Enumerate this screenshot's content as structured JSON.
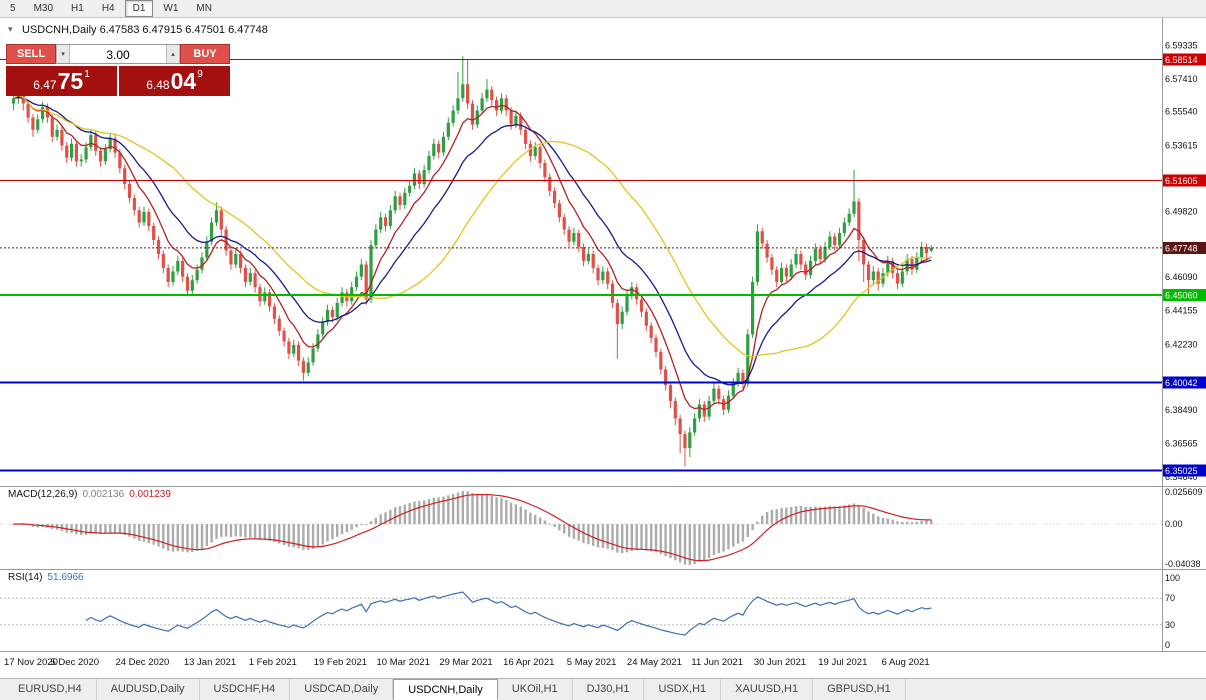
{
  "toolbar": {
    "periods": [
      {
        "label": "5",
        "active": false
      },
      {
        "label": "M30",
        "active": false
      },
      {
        "label": "H1",
        "active": false
      },
      {
        "label": "H4",
        "active": false
      },
      {
        "label": "D1",
        "active": true
      },
      {
        "label": "W1",
        "active": false
      },
      {
        "label": "MN",
        "active": false
      }
    ]
  },
  "chart_header": {
    "title_line": "USDCNH,Daily 6.47583 6.47915 6.47501 6.47748"
  },
  "trade_panel": {
    "sell_label": "SELL",
    "buy_label": "BUY",
    "volume": "3.00",
    "sell_price_small": "6.47",
    "sell_price_big": "75",
    "sell_price_sup": "1",
    "buy_price_small": "6.48",
    "buy_price_big": "04",
    "buy_price_sup": "9",
    "button_color": "#e0504a",
    "panel_color": "#a31010"
  },
  "indicators": {
    "macd": {
      "label": "MACD(12,26,9)",
      "value_main": "0.002136",
      "value_signal": "0.001239",
      "axis_top": "0.025609",
      "axis_zero": "0.00",
      "axis_bottom": "-0.04038",
      "histogram_color": "#ababab",
      "signal_color": "#cc2222"
    },
    "rsi": {
      "label": "RSI(14)",
      "value": "51.6966",
      "axis": [
        "100",
        "70",
        "30",
        "0"
      ],
      "levels": [
        70,
        30
      ],
      "line_color": "#3c6fb4"
    }
  },
  "tabs": [
    {
      "label": "EURUSD,H4",
      "active": false
    },
    {
      "label": "AUDUSD,Daily",
      "active": false
    },
    {
      "label": "USDCHF,H4",
      "active": false
    },
    {
      "label": "USDCAD,Daily",
      "active": false
    },
    {
      "label": "USDCNH,Daily",
      "active": true
    },
    {
      "label": "UKOil,H1",
      "active": false
    },
    {
      "label": "DJ30,H1",
      "active": false
    },
    {
      "label": "USDX,H1",
      "active": false
    },
    {
      "label": "XAUUSD,H1",
      "active": false
    },
    {
      "label": "GBPUSD,H1",
      "active": false
    }
  ],
  "chart_data": {
    "type": "candlestick",
    "symbol": "USDCNH",
    "timeframe": "Daily",
    "title": "USDCNH,Daily",
    "last_ohlc": {
      "open": 6.47583,
      "high": 6.47915,
      "low": 6.47501,
      "close": 6.47748
    },
    "up_color": "#2f9e41",
    "down_color": "#e05048",
    "price_axis_ticks": [
      "6.59335",
      "6.57410",
      "6.55540",
      "6.53615",
      "6.49820",
      "6.46090",
      "6.44155",
      "6.42230",
      "6.38490",
      "6.36565",
      "6.34640"
    ],
    "hlines": [
      {
        "label": "6.58514",
        "price": 6.58514,
        "color": "#cc0000",
        "width": 1
      },
      {
        "label": "6.51605",
        "price": 6.51605,
        "color": "#cc0000",
        "width": 1
      },
      {
        "label": "6.45060",
        "price": 6.4506,
        "color": "#00bb00",
        "width": 2
      },
      {
        "label": "6.40042",
        "price": 6.40042,
        "color": "#0000cc",
        "width": 2
      },
      {
        "label": "6.35025",
        "price": 6.35025,
        "color": "#0000cc",
        "width": 2
      }
    ],
    "current_price": {
      "label": "6.47748",
      "price": 6.47748,
      "color": "#5b1414"
    },
    "ma_lines": [
      {
        "name": "fast",
        "period": 8,
        "type": "ema",
        "color": "#b22222"
      },
      {
        "name": "medium",
        "period": 18,
        "type": "ema",
        "color": "#1a1a8c"
      },
      {
        "name": "slow",
        "period": 34,
        "type": "sma",
        "color": "#e0c520"
      }
    ],
    "date_labels": [
      {
        "label": "17 Nov 2020",
        "i": 0
      },
      {
        "label": "5 Dec 2020",
        "i": 13
      },
      {
        "label": "24 Dec 2020",
        "i": 27
      },
      {
        "label": "13 Jan 2021",
        "i": 41
      },
      {
        "label": "1 Feb 2021",
        "i": 54
      },
      {
        "label": "19 Feb 2021",
        "i": 68
      },
      {
        "label": "10 Mar 2021",
        "i": 81
      },
      {
        "label": "29 Mar 2021",
        "i": 94
      },
      {
        "label": "16 Apr 2021",
        "i": 107
      },
      {
        "label": "5 May 2021",
        "i": 120
      },
      {
        "label": "24 May 2021",
        "i": 133
      },
      {
        "label": "11 Jun 2021",
        "i": 146
      },
      {
        "label": "30 Jun 2021",
        "i": 159
      },
      {
        "label": "19 Jul 2021",
        "i": 172
      },
      {
        "label": "6 Aug 2021",
        "i": 185
      }
    ],
    "candles": [
      [
        6.56,
        6.566,
        6.556,
        6.563
      ],
      [
        6.563,
        6.57,
        6.56,
        6.567
      ],
      [
        6.567,
        6.569,
        6.556,
        6.56
      ],
      [
        6.56,
        6.562,
        6.549,
        6.552
      ],
      [
        6.552,
        6.554,
        6.541,
        6.545
      ],
      [
        6.545,
        6.554,
        6.543,
        6.551
      ],
      [
        6.551,
        6.561,
        6.549,
        6.558
      ],
      [
        6.558,
        6.56,
        6.549,
        6.552
      ],
      [
        6.552,
        6.554,
        6.538,
        6.541
      ],
      [
        6.541,
        6.548,
        6.539,
        6.545
      ],
      [
        6.545,
        6.547,
        6.533,
        6.536
      ],
      [
        6.536,
        6.538,
        6.526,
        6.529
      ],
      [
        6.529,
        6.54,
        6.527,
        6.537
      ],
      [
        6.537,
        6.539,
        6.524,
        6.527
      ],
      [
        6.527,
        6.531,
        6.524,
        6.528
      ],
      [
        6.528,
        6.538,
        6.526,
        6.535
      ],
      [
        6.535,
        6.545,
        6.533,
        6.542
      ],
      [
        6.542,
        6.544,
        6.53,
        6.533
      ],
      [
        6.533,
        6.535,
        6.524,
        6.527
      ],
      [
        6.527,
        6.537,
        6.525,
        6.534
      ],
      [
        6.534,
        6.543,
        6.532,
        6.54
      ],
      [
        6.54,
        6.542,
        6.529,
        6.532
      ],
      [
        6.532,
        6.534,
        6.52,
        6.523
      ],
      [
        6.523,
        6.525,
        6.511,
        6.514
      ],
      [
        6.514,
        6.516,
        6.503,
        6.506
      ],
      [
        6.506,
        6.508,
        6.496,
        6.499
      ],
      [
        6.499,
        6.501,
        6.489,
        6.492
      ],
      [
        6.492,
        6.501,
        6.49,
        6.498
      ],
      [
        6.498,
        6.5,
        6.487,
        6.49
      ],
      [
        6.49,
        6.492,
        6.479,
        6.482
      ],
      [
        6.482,
        6.484,
        6.471,
        6.474
      ],
      [
        6.474,
        6.476,
        6.463,
        6.466
      ],
      [
        6.466,
        6.468,
        6.455,
        6.458
      ],
      [
        6.458,
        6.467,
        6.456,
        6.464
      ],
      [
        6.464,
        6.473,
        6.462,
        6.47
      ],
      [
        6.47,
        6.472,
        6.458,
        6.461
      ],
      [
        6.461,
        6.463,
        6.45,
        6.453
      ],
      [
        6.453,
        6.462,
        6.451,
        6.459
      ],
      [
        6.459,
        6.468,
        6.457,
        6.465
      ],
      [
        6.465,
        6.475,
        6.463,
        6.472
      ],
      [
        6.472,
        6.484,
        6.47,
        6.481
      ],
      [
        6.481,
        6.495,
        6.479,
        6.492
      ],
      [
        6.492,
        6.5035,
        6.49,
        6.499
      ],
      [
        6.499,
        6.501,
        6.485,
        6.488
      ],
      [
        6.488,
        6.49,
        6.473,
        6.476
      ],
      [
        6.476,
        6.478,
        6.465,
        6.468
      ],
      [
        6.468,
        6.477,
        6.466,
        6.474
      ],
      [
        6.474,
        6.476,
        6.463,
        6.466
      ],
      [
        6.466,
        6.468,
        6.455,
        6.458
      ],
      [
        6.458,
        6.466,
        6.456,
        6.463
      ],
      [
        6.463,
        6.465,
        6.452,
        6.455
      ],
      [
        6.455,
        6.457,
        6.444,
        6.447
      ],
      [
        6.447,
        6.455,
        6.445,
        6.452
      ],
      [
        6.452,
        6.454,
        6.441,
        6.444
      ],
      [
        6.444,
        6.446,
        6.434,
        6.437
      ],
      [
        6.437,
        6.439,
        6.427,
        6.43
      ],
      [
        6.43,
        6.432,
        6.421,
        6.424
      ],
      [
        6.424,
        6.426,
        6.414,
        6.417
      ],
      [
        6.417,
        6.425,
        6.415,
        6.422
      ],
      [
        6.422,
        6.424,
        6.41,
        6.413
      ],
      [
        6.413,
        6.415,
        6.4015,
        6.406
      ],
      [
        6.406,
        6.415,
        6.404,
        6.412
      ],
      [
        6.412,
        6.423,
        6.41,
        6.42
      ],
      [
        6.42,
        6.431,
        6.418,
        6.428
      ],
      [
        6.428,
        6.438,
        6.426,
        6.435
      ],
      [
        6.435,
        6.445,
        6.433,
        6.442
      ],
      [
        6.442,
        6.444,
        6.435,
        6.438
      ],
      [
        6.438,
        6.449,
        6.436,
        6.446
      ],
      [
        6.446,
        6.455,
        6.444,
        6.452
      ],
      [
        6.452,
        6.454,
        6.444,
        6.447
      ],
      [
        6.447,
        6.458,
        6.445,
        6.455
      ],
      [
        6.455,
        6.464,
        6.453,
        6.461
      ],
      [
        6.461,
        6.471,
        6.459,
        6.468
      ],
      [
        6.468,
        6.47,
        6.445,
        6.448
      ],
      [
        6.448,
        6.482,
        6.446,
        6.479
      ],
      [
        6.479,
        6.491,
        6.477,
        6.488
      ],
      [
        6.488,
        6.498,
        6.486,
        6.495
      ],
      [
        6.495,
        6.497,
        6.487,
        6.49
      ],
      [
        6.49,
        6.502,
        6.488,
        6.499
      ],
      [
        6.499,
        6.51,
        6.497,
        6.507
      ],
      [
        6.507,
        6.509,
        6.499,
        6.502
      ],
      [
        6.502,
        6.512,
        6.5,
        6.509
      ],
      [
        6.509,
        6.516,
        6.507,
        6.513
      ],
      [
        6.513,
        6.523,
        6.511,
        6.52
      ],
      [
        6.52,
        6.522,
        6.511,
        6.514
      ],
      [
        6.514,
        6.525,
        6.512,
        6.522
      ],
      [
        6.522,
        6.533,
        6.52,
        6.53
      ],
      [
        6.53,
        6.54,
        6.528,
        6.537
      ],
      [
        6.537,
        6.539,
        6.529,
        6.532
      ],
      [
        6.532,
        6.544,
        6.53,
        6.541
      ],
      [
        6.541,
        6.552,
        6.539,
        6.549
      ],
      [
        6.549,
        6.559,
        6.547,
        6.556
      ],
      [
        6.556,
        6.578,
        6.554,
        6.563
      ],
      [
        6.563,
        6.587,
        6.561,
        6.571
      ],
      [
        6.571,
        6.585,
        6.557,
        6.56
      ],
      [
        6.56,
        6.562,
        6.545,
        6.548
      ],
      [
        6.548,
        6.559,
        6.546,
        6.556
      ],
      [
        6.556,
        6.566,
        6.554,
        6.563
      ],
      [
        6.563,
        6.574,
        6.561,
        6.568
      ],
      [
        6.568,
        6.57,
        6.559,
        6.562
      ],
      [
        6.562,
        6.564,
        6.553,
        6.556
      ],
      [
        6.556,
        6.566,
        6.554,
        6.563
      ],
      [
        6.563,
        6.565,
        6.553,
        6.556
      ],
      [
        6.556,
        6.558,
        6.545,
        6.548
      ],
      [
        6.548,
        6.556,
        6.546,
        6.553
      ],
      [
        6.553,
        6.555,
        6.542,
        6.545
      ],
      [
        6.545,
        6.547,
        6.534,
        6.537
      ],
      [
        6.537,
        6.539,
        6.527,
        6.53
      ],
      [
        6.53,
        6.538,
        6.528,
        6.535
      ],
      [
        6.535,
        6.537,
        6.523,
        6.526
      ],
      [
        6.526,
        6.528,
        6.515,
        6.518
      ],
      [
        6.518,
        6.52,
        6.507,
        6.51
      ],
      [
        6.51,
        6.512,
        6.5,
        6.503
      ],
      [
        6.503,
        6.505,
        6.492,
        6.495
      ],
      [
        6.495,
        6.497,
        6.485,
        6.488
      ],
      [
        6.488,
        6.49,
        6.478,
        6.481
      ],
      [
        6.481,
        6.489,
        6.479,
        6.486
      ],
      [
        6.486,
        6.488,
        6.475,
        6.478
      ],
      [
        6.478,
        6.48,
        6.467,
        6.47
      ],
      [
        6.47,
        6.477,
        6.468,
        6.474
      ],
      [
        6.474,
        6.476,
        6.463,
        6.466
      ],
      [
        6.466,
        6.468,
        6.456,
        6.459
      ],
      [
        6.459,
        6.467,
        6.457,
        6.464
      ],
      [
        6.464,
        6.466,
        6.454,
        6.457
      ],
      [
        6.457,
        6.459,
        6.443,
        6.446
      ],
      [
        6.446,
        6.448,
        6.414,
        6.434
      ],
      [
        6.434,
        6.444,
        6.431,
        6.441
      ],
      [
        6.441,
        6.453,
        6.439,
        6.45
      ],
      [
        6.45,
        6.458,
        6.448,
        6.455
      ],
      [
        6.455,
        6.457,
        6.445,
        6.448
      ],
      [
        6.448,
        6.45,
        6.438,
        6.441
      ],
      [
        6.441,
        6.443,
        6.43,
        6.433
      ],
      [
        6.433,
        6.435,
        6.423,
        6.426
      ],
      [
        6.426,
        6.428,
        6.415,
        6.418
      ],
      [
        6.418,
        6.42,
        6.405,
        6.408
      ],
      [
        6.408,
        6.41,
        6.396,
        6.399
      ],
      [
        6.399,
        6.401,
        6.386,
        6.39
      ],
      [
        6.39,
        6.392,
        6.376,
        6.38
      ],
      [
        6.38,
        6.382,
        6.36,
        6.371
      ],
      [
        6.371,
        6.373,
        6.3525,
        6.363
      ],
      [
        6.363,
        6.375,
        6.358,
        6.372
      ],
      [
        6.372,
        6.383,
        6.37,
        6.38
      ],
      [
        6.38,
        6.391,
        6.378,
        6.388
      ],
      [
        6.388,
        6.39,
        6.378,
        6.381
      ],
      [
        6.381,
        6.393,
        6.379,
        6.39
      ],
      [
        6.39,
        6.4,
        6.388,
        6.397
      ],
      [
        6.397,
        6.399,
        6.388,
        6.391
      ],
      [
        6.391,
        6.393,
        6.382,
        6.385
      ],
      [
        6.385,
        6.396,
        6.383,
        6.393
      ],
      [
        6.393,
        6.403,
        6.391,
        6.4
      ],
      [
        6.4,
        6.409,
        6.398,
        6.406
      ],
      [
        6.406,
        6.408,
        6.397,
        6.4
      ],
      [
        6.4,
        6.431,
        6.398,
        6.428
      ],
      [
        6.428,
        6.461,
        6.426,
        6.458
      ],
      [
        6.458,
        6.491,
        6.456,
        6.487
      ],
      [
        6.487,
        6.489,
        6.477,
        6.48
      ],
      [
        6.48,
        6.482,
        6.469,
        6.472
      ],
      [
        6.472,
        6.474,
        6.462,
        6.465
      ],
      [
        6.465,
        6.467,
        6.455,
        6.458
      ],
      [
        6.458,
        6.469,
        6.456,
        6.466
      ],
      [
        6.466,
        6.468,
        6.458,
        6.461
      ],
      [
        6.461,
        6.471,
        6.459,
        6.468
      ],
      [
        6.468,
        6.477,
        6.466,
        6.474
      ],
      [
        6.474,
        6.476,
        6.465,
        6.468
      ],
      [
        6.468,
        6.47,
        6.459,
        6.462
      ],
      [
        6.462,
        6.473,
        6.46,
        6.47
      ],
      [
        6.47,
        6.48,
        6.468,
        6.477
      ],
      [
        6.477,
        6.479,
        6.468,
        6.471
      ],
      [
        6.471,
        6.481,
        6.469,
        6.478
      ],
      [
        6.478,
        6.487,
        6.476,
        6.484
      ],
      [
        6.484,
        6.486,
        6.476,
        6.479
      ],
      [
        6.479,
        6.489,
        6.477,
        6.486
      ],
      [
        6.486,
        6.495,
        6.484,
        6.492
      ],
      [
        6.492,
        6.5,
        6.49,
        6.497
      ],
      [
        6.497,
        6.522,
        6.495,
        6.504
      ],
      [
        6.504,
        6.506,
        6.47,
        6.482
      ],
      [
        6.482,
        6.484,
        6.458,
        6.468
      ],
      [
        6.468,
        6.47,
        6.45,
        6.459
      ],
      [
        6.459,
        6.467,
        6.456,
        6.464
      ],
      [
        6.464,
        6.466,
        6.453,
        6.457
      ],
      [
        6.457,
        6.466,
        6.455,
        6.463
      ],
      [
        6.463,
        6.473,
        6.461,
        6.47
      ],
      [
        6.47,
        6.472,
        6.46,
        6.463
      ],
      [
        6.463,
        6.465,
        6.454,
        6.457
      ],
      [
        6.457,
        6.467,
        6.455,
        6.464
      ],
      [
        6.464,
        6.474,
        6.462,
        6.471
      ],
      [
        6.471,
        6.473,
        6.462,
        6.465
      ],
      [
        6.465,
        6.475,
        6.463,
        6.472
      ],
      [
        6.472,
        6.481,
        6.47,
        6.478
      ],
      [
        6.478,
        6.48,
        6.471,
        6.4745
      ],
      [
        6.47583,
        6.47915,
        6.47501,
        6.47748
      ]
    ]
  }
}
